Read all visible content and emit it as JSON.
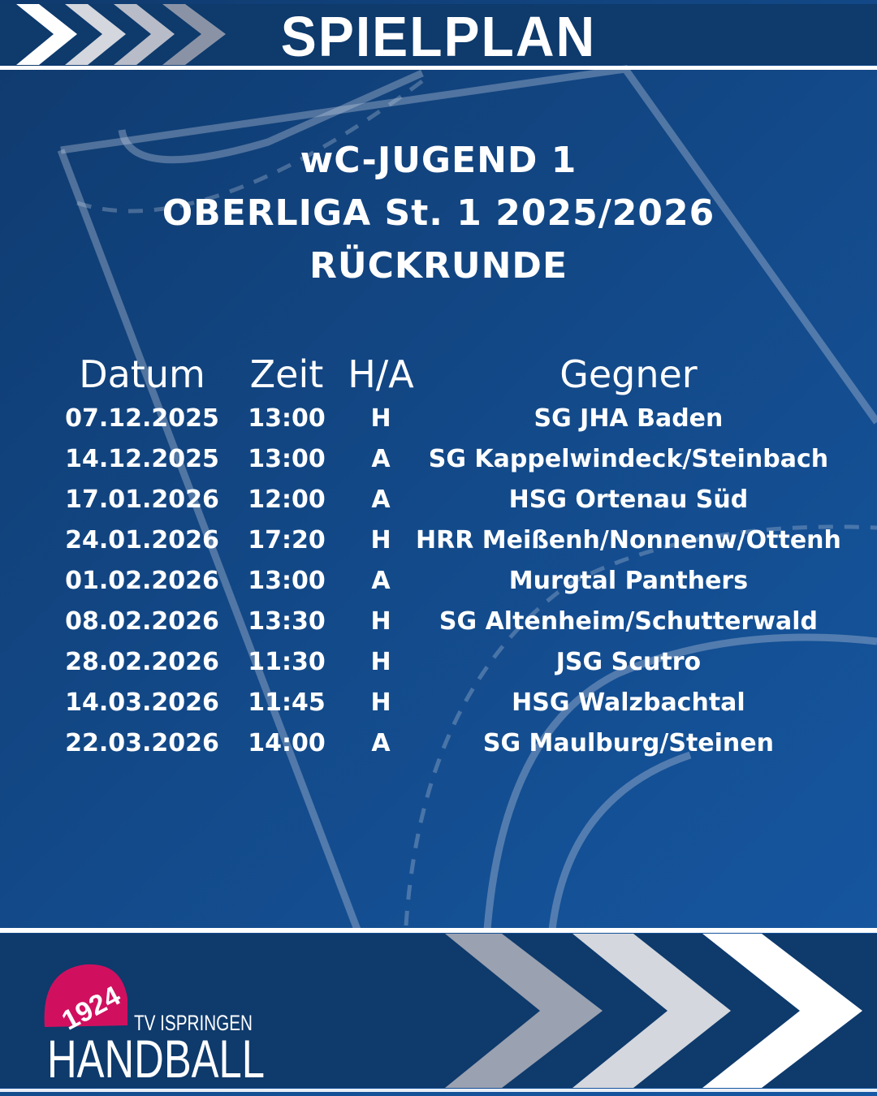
{
  "header": {
    "title": "SPIELPLAN"
  },
  "subtitle": {
    "line1": "wC-JUGEND 1",
    "line2": "OBERLIGA St. 1 2025/2026",
    "line3": "RÜCKRUNDE"
  },
  "table": {
    "headers": [
      "Datum",
      "Zeit",
      "H/A",
      "Gegner"
    ],
    "rows": [
      [
        "07.12.2025",
        "13:00",
        "H",
        "SG JHA Baden"
      ],
      [
        "14.12.2025",
        "13:00",
        "A",
        "SG Kappelwindeck/Steinbach"
      ],
      [
        "17.01.2026",
        "12:00",
        "A",
        "HSG Ortenau Süd"
      ],
      [
        "24.01.2026",
        "17:20",
        "H",
        "HRR Meißenh/Nonnenw/Ottenh"
      ],
      [
        "01.02.2026",
        "13:00",
        "A",
        "Murgtal Panthers"
      ],
      [
        "08.02.2026",
        "13:30",
        "H",
        "SG Altenheim/Schutterwald"
      ],
      [
        "28.02.2026",
        "11:30",
        "H",
        "JSG Scutro"
      ],
      [
        "14.03.2026",
        "11:45",
        "H",
        "HSG Walzbachtal"
      ],
      [
        "22.03.2026",
        "14:00",
        "A",
        "SG Maulburg/Steinen"
      ]
    ]
  },
  "logo": {
    "year": "1924",
    "club": "TV ISPRINGEN",
    "sport": "HANDBALL"
  },
  "colors": {
    "band": "#0e3a6c",
    "background": "#134a8a",
    "logo_ball": "#d0105f",
    "chevron_white": "#ffffff",
    "chevron_light": "#d4d7de",
    "chevron_gray": "#9aa1b0"
  }
}
